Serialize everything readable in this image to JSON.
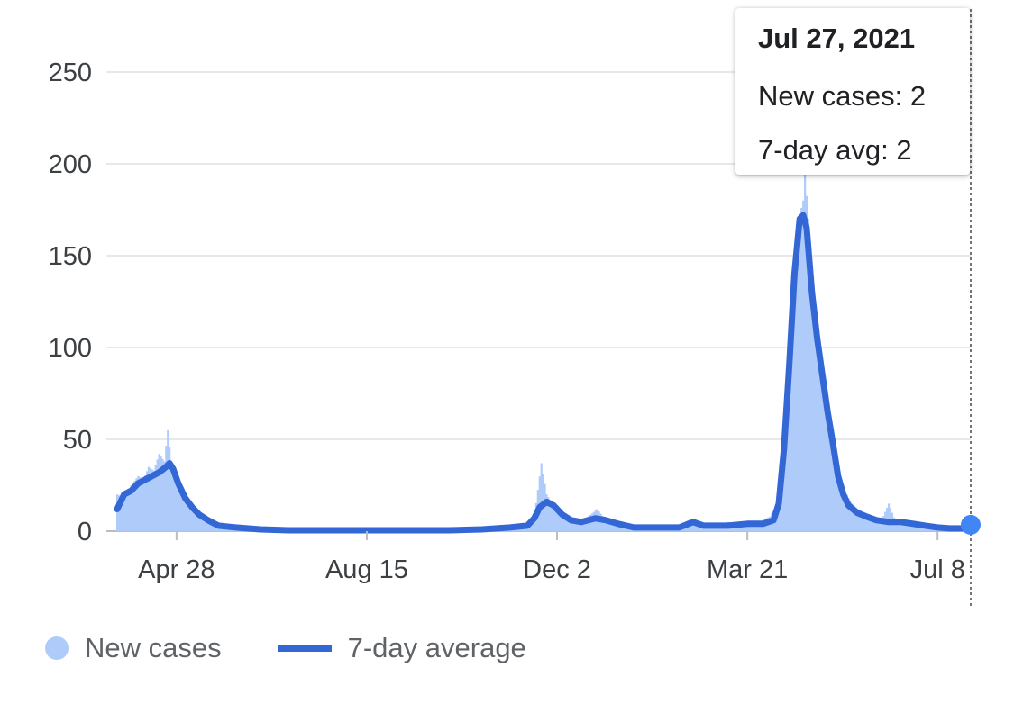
{
  "chart_data": {
    "type": "bar+line",
    "title": "",
    "xlabel": "",
    "ylabel": "",
    "ylim": [
      0,
      250
    ],
    "yticks": [
      "0",
      "50",
      "100",
      "150",
      "200",
      "250"
    ],
    "xticks": [
      {
        "label": "Apr 28",
        "date": "2020-04-28"
      },
      {
        "label": "Aug 15",
        "date": "2020-08-15"
      },
      {
        "label": "Dec 2",
        "date": "2020-12-02"
      },
      {
        "label": "Mar 21",
        "date": "2021-03-21"
      },
      {
        "label": "Jul 8",
        "date": "2021-07-08"
      }
    ],
    "x_range": [
      "2020-03-25",
      "2021-07-27"
    ],
    "grid": true,
    "legend_position": "bottom-left",
    "series": [
      {
        "name": "New cases",
        "kind": "bar",
        "color": "#aecbfa",
        "points": [
          [
            "2020-03-25",
            20
          ],
          [
            "2020-03-29",
            18
          ],
          [
            "2020-04-02",
            25
          ],
          [
            "2020-04-06",
            30
          ],
          [
            "2020-04-09",
            28
          ],
          [
            "2020-04-12",
            35
          ],
          [
            "2020-04-15",
            33
          ],
          [
            "2020-04-18",
            42
          ],
          [
            "2020-04-21",
            38
          ],
          [
            "2020-04-23",
            55
          ],
          [
            "2020-04-25",
            36
          ],
          [
            "2020-04-28",
            30
          ],
          [
            "2020-05-01",
            24
          ],
          [
            "2020-05-05",
            14
          ],
          [
            "2020-05-09",
            9
          ],
          [
            "2020-05-14",
            5
          ],
          [
            "2020-05-20",
            4
          ],
          [
            "2020-05-26",
            2
          ],
          [
            "2020-06-02",
            1
          ],
          [
            "2020-06-10",
            1
          ],
          [
            "2020-06-20",
            0
          ],
          [
            "2020-07-01",
            1
          ],
          [
            "2020-07-15",
            0
          ],
          [
            "2020-08-01",
            1
          ],
          [
            "2020-08-15",
            1
          ],
          [
            "2020-09-01",
            0
          ],
          [
            "2020-09-15",
            1
          ],
          [
            "2020-10-01",
            0
          ],
          [
            "2020-10-15",
            1
          ],
          [
            "2020-10-28",
            2
          ],
          [
            "2020-11-05",
            3
          ],
          [
            "2020-11-13",
            4
          ],
          [
            "2020-11-19",
            8
          ],
          [
            "2020-11-23",
            37
          ],
          [
            "2020-11-26",
            20
          ],
          [
            "2020-11-30",
            14
          ],
          [
            "2020-12-05",
            10
          ],
          [
            "2020-12-10",
            6
          ],
          [
            "2020-12-15",
            5
          ],
          [
            "2020-12-20",
            8
          ],
          [
            "2020-12-25",
            12
          ],
          [
            "2020-12-29",
            7
          ],
          [
            "2021-01-04",
            6
          ],
          [
            "2021-01-12",
            4
          ],
          [
            "2021-01-22",
            2
          ],
          [
            "2021-02-01",
            2
          ],
          [
            "2021-02-10",
            3
          ],
          [
            "2021-02-15",
            6
          ],
          [
            "2021-02-20",
            4
          ],
          [
            "2021-03-01",
            3
          ],
          [
            "2021-03-10",
            5
          ],
          [
            "2021-03-21",
            4
          ],
          [
            "2021-03-28",
            5
          ],
          [
            "2021-04-03",
            8
          ],
          [
            "2021-04-07",
            14
          ],
          [
            "2021-04-10",
            30
          ],
          [
            "2021-04-13",
            68
          ],
          [
            "2021-04-15",
            95
          ],
          [
            "2021-04-18",
            148
          ],
          [
            "2021-04-20",
            172
          ],
          [
            "2021-04-22",
            180
          ],
          [
            "2021-04-23",
            195
          ],
          [
            "2021-04-25",
            170
          ],
          [
            "2021-04-27",
            120
          ],
          [
            "2021-04-29",
            110
          ],
          [
            "2021-05-01",
            100
          ],
          [
            "2021-05-03",
            88
          ],
          [
            "2021-05-06",
            72
          ],
          [
            "2021-05-09",
            55
          ],
          [
            "2021-05-12",
            30
          ],
          [
            "2021-05-15",
            24
          ],
          [
            "2021-05-19",
            16
          ],
          [
            "2021-05-23",
            12
          ],
          [
            "2021-05-28",
            10
          ],
          [
            "2021-06-02",
            8
          ],
          [
            "2021-06-06",
            6
          ],
          [
            "2021-06-10",
            15
          ],
          [
            "2021-06-14",
            5
          ],
          [
            "2021-06-20",
            6
          ],
          [
            "2021-06-26",
            4
          ],
          [
            "2021-07-02",
            4
          ],
          [
            "2021-07-08",
            3
          ],
          [
            "2021-07-15",
            2
          ],
          [
            "2021-07-22",
            2
          ],
          [
            "2021-07-27",
            2
          ]
        ]
      },
      {
        "name": "7-day average",
        "kind": "line",
        "color": "#3367d6",
        "points": [
          [
            "2020-03-25",
            12
          ],
          [
            "2020-03-29",
            20
          ],
          [
            "2020-04-02",
            22
          ],
          [
            "2020-04-06",
            26
          ],
          [
            "2020-04-10",
            28
          ],
          [
            "2020-04-14",
            30
          ],
          [
            "2020-04-18",
            32
          ],
          [
            "2020-04-22",
            35
          ],
          [
            "2020-04-24",
            37
          ],
          [
            "2020-04-26",
            34
          ],
          [
            "2020-04-29",
            26
          ],
          [
            "2020-05-03",
            18
          ],
          [
            "2020-05-07",
            13
          ],
          [
            "2020-05-11",
            9
          ],
          [
            "2020-05-16",
            6
          ],
          [
            "2020-05-22",
            3
          ],
          [
            "2020-06-01",
            2
          ],
          [
            "2020-06-15",
            1
          ],
          [
            "2020-07-01",
            0.5
          ],
          [
            "2020-08-01",
            0.5
          ],
          [
            "2020-09-01",
            0.5
          ],
          [
            "2020-10-01",
            0.5
          ],
          [
            "2020-10-20",
            1
          ],
          [
            "2020-11-05",
            2
          ],
          [
            "2020-11-15",
            3
          ],
          [
            "2020-11-19",
            7
          ],
          [
            "2020-11-22",
            13
          ],
          [
            "2020-11-26",
            16
          ],
          [
            "2020-11-30",
            14
          ],
          [
            "2020-12-05",
            9
          ],
          [
            "2020-12-10",
            6
          ],
          [
            "2020-12-16",
            5
          ],
          [
            "2020-12-24",
            7
          ],
          [
            "2020-12-30",
            6
          ],
          [
            "2021-01-06",
            4
          ],
          [
            "2021-01-15",
            2
          ],
          [
            "2021-01-30",
            2
          ],
          [
            "2021-02-10",
            2
          ],
          [
            "2021-02-18",
            5
          ],
          [
            "2021-02-24",
            3
          ],
          [
            "2021-03-10",
            3
          ],
          [
            "2021-03-21",
            4
          ],
          [
            "2021-03-30",
            4
          ],
          [
            "2021-04-05",
            6
          ],
          [
            "2021-04-08",
            15
          ],
          [
            "2021-04-11",
            45
          ],
          [
            "2021-04-14",
            90
          ],
          [
            "2021-04-17",
            140
          ],
          [
            "2021-04-20",
            170
          ],
          [
            "2021-04-22",
            172
          ],
          [
            "2021-04-24",
            165
          ],
          [
            "2021-04-27",
            130
          ],
          [
            "2021-04-30",
            105
          ],
          [
            "2021-05-03",
            85
          ],
          [
            "2021-05-06",
            65
          ],
          [
            "2021-05-09",
            48
          ],
          [
            "2021-05-12",
            30
          ],
          [
            "2021-05-15",
            20
          ],
          [
            "2021-05-18",
            14
          ],
          [
            "2021-05-23",
            10
          ],
          [
            "2021-05-28",
            8
          ],
          [
            "2021-06-03",
            6
          ],
          [
            "2021-06-10",
            5
          ],
          [
            "2021-06-17",
            5
          ],
          [
            "2021-06-24",
            4
          ],
          [
            "2021-07-01",
            3
          ],
          [
            "2021-07-08",
            2
          ],
          [
            "2021-07-15",
            1.5
          ],
          [
            "2021-07-22",
            1.5
          ],
          [
            "2021-07-27",
            2
          ]
        ]
      }
    ]
  },
  "tooltip": {
    "date": "Jul 27, 2021",
    "new_cases": "New cases: 2",
    "avg": "7-day avg: 2"
  },
  "legend": {
    "new_cases_label": "New cases",
    "avg_label": "7-day average",
    "new_cases_color": "#aecbfa",
    "avg_color": "#3367d6"
  }
}
